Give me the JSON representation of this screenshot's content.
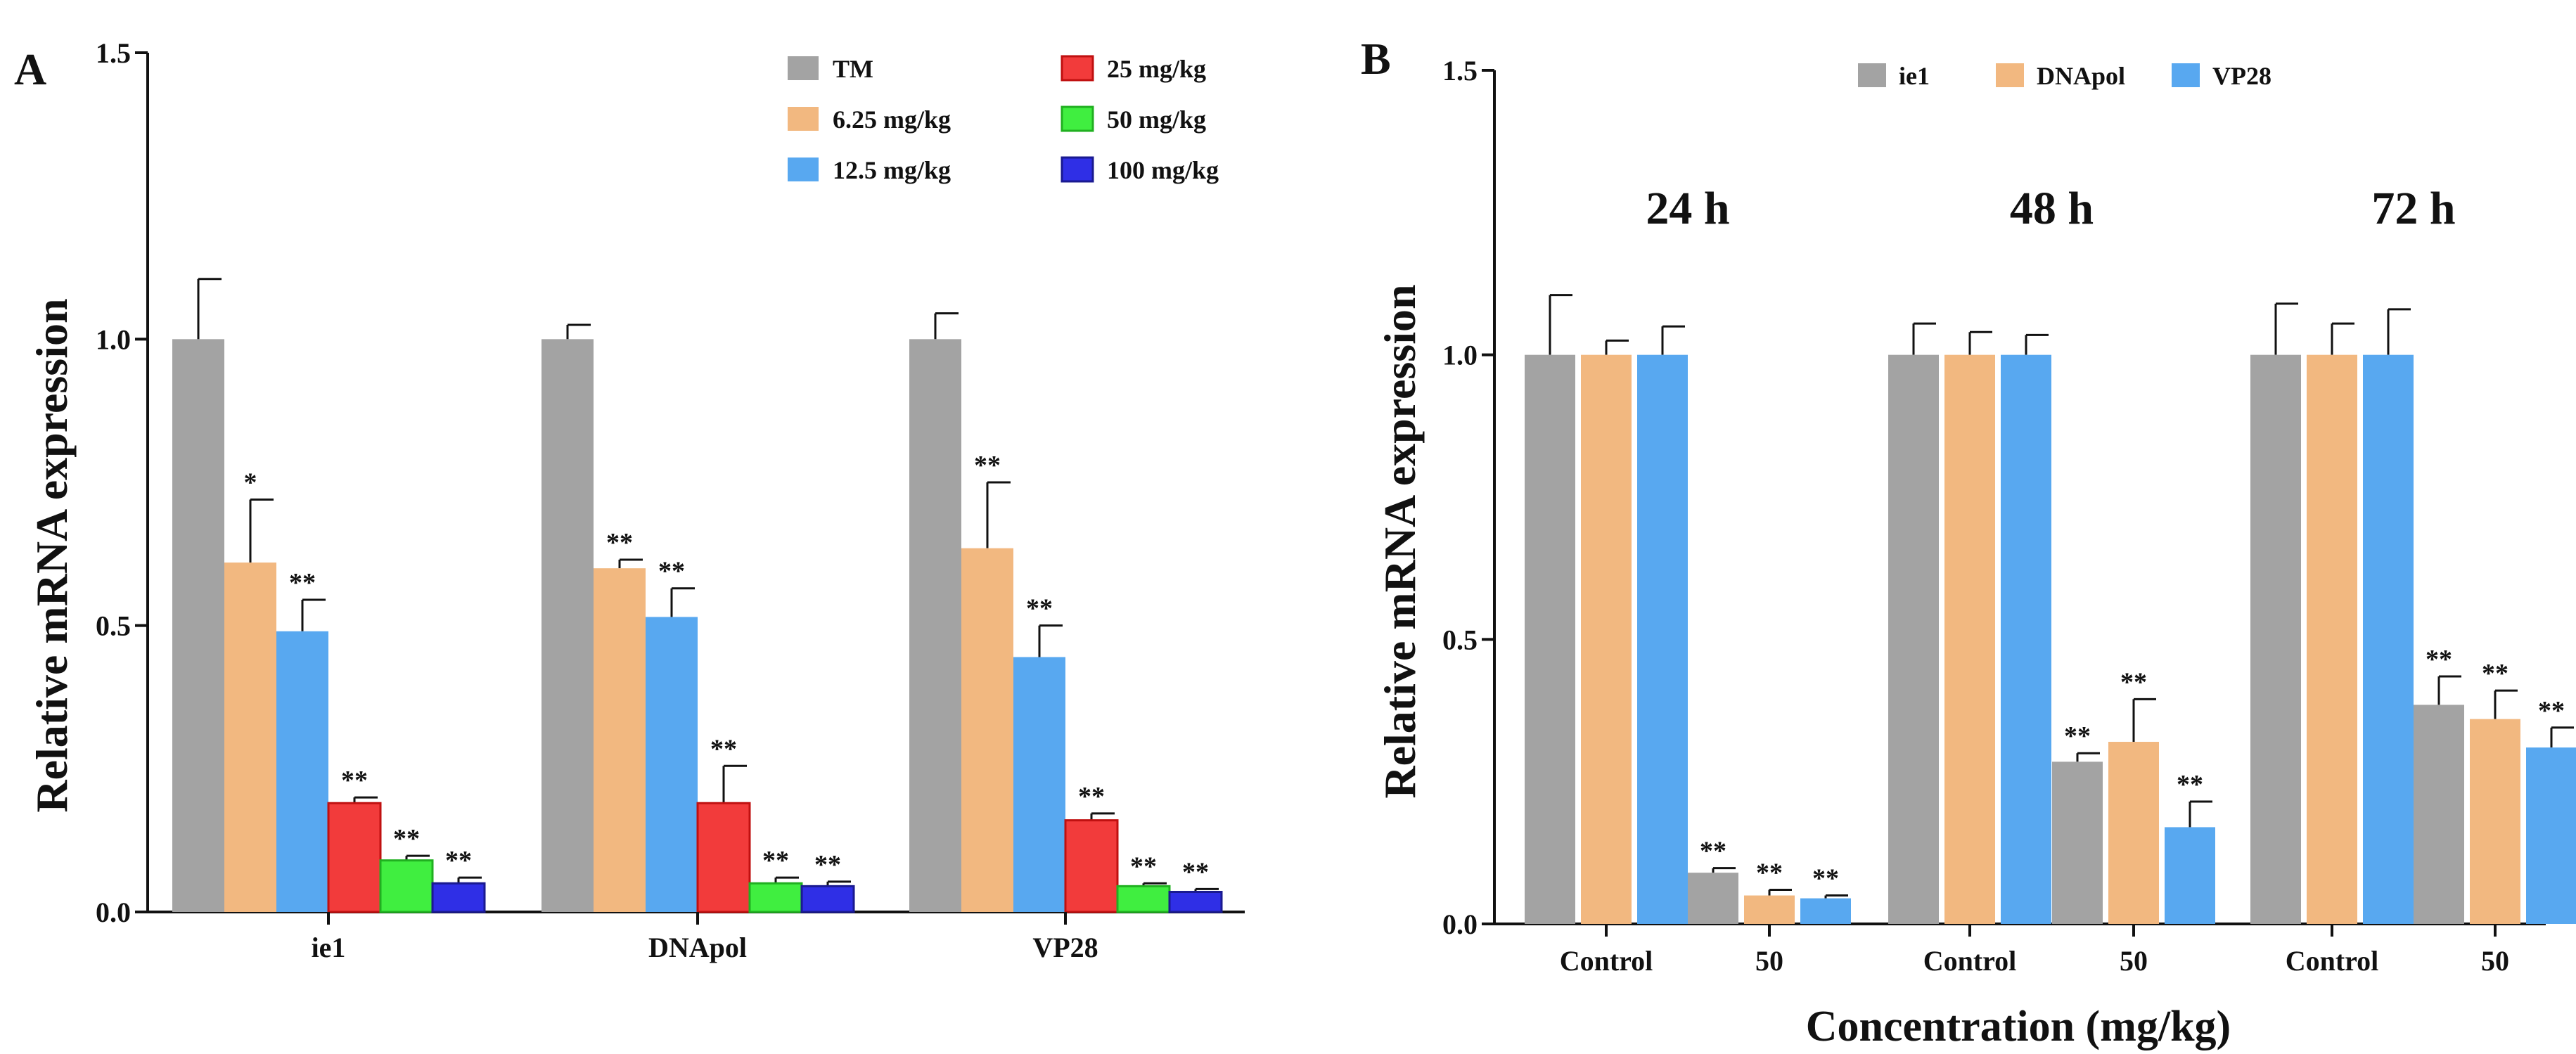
{
  "colors": {
    "gray": "#a3a3a3",
    "orange": "#f2b880",
    "blue": "#58a8f0",
    "red": "#f23b3b",
    "green": "#40ee40",
    "navy": "#2f2fe6"
  },
  "chart_data": [
    {
      "panel": "A",
      "type": "bar",
      "ylabel": "Relative mRNA expression",
      "xlabel": "",
      "ylim": [
        0,
        1.5
      ],
      "yticks": [
        "0.0",
        "0.5",
        "1.0",
        "1.5"
      ],
      "ytick_values": [
        0,
        0.5,
        1.0,
        1.5
      ],
      "categories": [
        "ie1",
        "DNApol",
        "VP28"
      ],
      "legend_position": "top-right",
      "series": [
        {
          "name": "TM",
          "color": "gray",
          "values": [
            1.0,
            1.0,
            1.0
          ],
          "errors": [
            0.105,
            0.025,
            0.045
          ],
          "sig": [
            "",
            "",
            ""
          ]
        },
        {
          "name": "6.25 mg/kg",
          "color": "orange",
          "values": [
            0.61,
            0.6,
            0.635
          ],
          "errors": [
            0.11,
            0.015,
            0.115
          ],
          "sig": [
            "*",
            "**",
            "**"
          ]
        },
        {
          "name": "12.5 mg/kg",
          "color": "blue",
          "values": [
            0.49,
            0.515,
            0.445
          ],
          "errors": [
            0.055,
            0.05,
            0.055
          ],
          "sig": [
            "**",
            "**",
            "**"
          ]
        },
        {
          "name": "25 mg/kg",
          "color": "red",
          "values": [
            0.19,
            0.19,
            0.16
          ],
          "errors": [
            0.01,
            0.065,
            0.012
          ],
          "sig": [
            "**",
            "**",
            "**"
          ]
        },
        {
          "name": "50 mg/kg",
          "color": "green",
          "values": [
            0.09,
            0.05,
            0.045
          ],
          "errors": [
            0.008,
            0.01,
            0.005
          ],
          "sig": [
            "**",
            "**",
            "**"
          ]
        },
        {
          "name": "100 mg/kg",
          "color": "navy",
          "values": [
            0.05,
            0.045,
            0.035
          ],
          "errors": [
            0.01,
            0.008,
            0.005
          ],
          "sig": [
            "**",
            "**",
            "**"
          ]
        }
      ]
    },
    {
      "panel": "B",
      "type": "bar",
      "ylabel": "Relative mRNA expression",
      "xlabel": "Concentration (mg/kg)",
      "ylim": [
        0,
        1.5
      ],
      "yticks": [
        "0.0",
        "0.5",
        "1.0",
        "1.5"
      ],
      "ytick_values": [
        0,
        0.5,
        1.0,
        1.5
      ],
      "time_labels": [
        "24 h",
        "48 h",
        "72 h"
      ],
      "categories": [
        "Control",
        "50",
        "Control",
        "50",
        "Control",
        "50"
      ],
      "legend_position": "top-center",
      "series": [
        {
          "name": "ie1",
          "color": "gray",
          "values": [
            1.0,
            0.09,
            1.0,
            0.285,
            1.0,
            0.385
          ],
          "errors": [
            0.105,
            0.008,
            0.055,
            0.015,
            0.09,
            0.05
          ],
          "sig": [
            "",
            "**",
            "",
            "**",
            "",
            "**"
          ]
        },
        {
          "name": "DNApol",
          "color": "orange",
          "values": [
            1.0,
            0.05,
            1.0,
            0.32,
            1.0,
            0.36
          ],
          "errors": [
            0.025,
            0.01,
            0.04,
            0.075,
            0.055,
            0.05
          ],
          "sig": [
            "",
            "**",
            "",
            "**",
            "",
            "**"
          ]
        },
        {
          "name": "VP28",
          "color": "blue",
          "values": [
            1.0,
            0.045,
            1.0,
            0.17,
            1.0,
            0.31
          ],
          "errors": [
            0.05,
            0.005,
            0.035,
            0.045,
            0.08,
            0.035
          ],
          "sig": [
            "",
            "**",
            "",
            "**",
            "",
            "**"
          ]
        }
      ]
    }
  ]
}
